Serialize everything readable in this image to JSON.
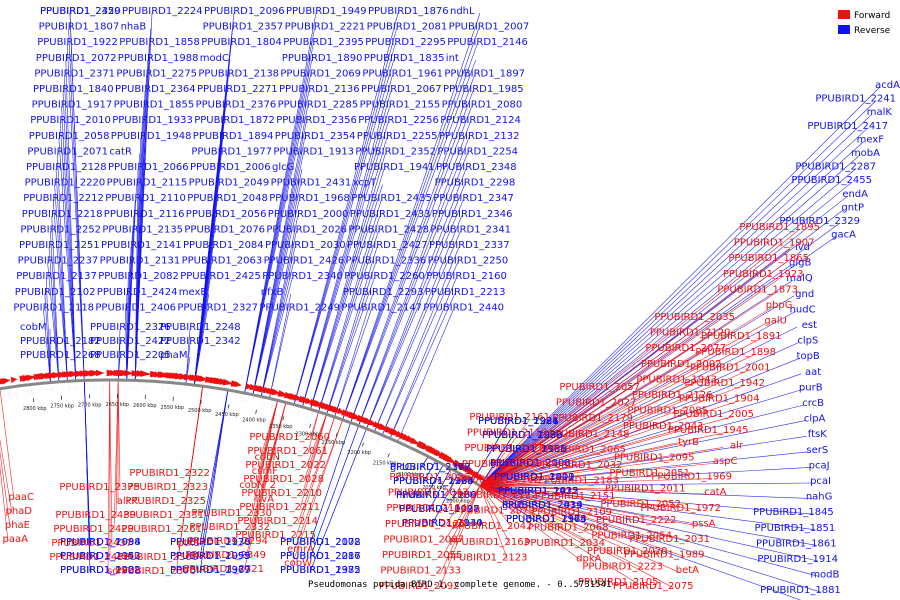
{
  "caption": "Pseudomonas putida BIRD-1, complete genome. - 0..5731541",
  "legend": [
    {
      "label": "Forward",
      "color": "#ee1111"
    },
    {
      "label": "Reverse",
      "color": "#1111ee"
    }
  ],
  "colors": {
    "forward": "#ee1111",
    "reverse": "#1111ee",
    "backbone": "#777777"
  },
  "tick_labels": [
    "2000 kbp",
    "2050 kbp",
    "2100 kbp",
    "2150 kbp",
    "2200 kbp",
    "2250 kbp",
    "2300 kbp",
    "2350 kbp",
    "2400 kbp",
    "2450 kbp",
    "2500 kbp",
    "2550 kbp",
    "2600 kbp",
    "2650 kbp",
    "2700 kbp",
    "2750 kbp",
    "2800 kbp"
  ],
  "reverse_labels": [
    "PPUBIRD1_2359",
    "PPUBIRD1_2224",
    "PPUBIRD1_2096",
    "PPUBIRD1_1949",
    "PPUBIRD1_1876",
    "ndhL",
    "PPUBIRD1_1807",
    "nhaB",
    "PPUBIRD1_2357",
    "PPUBIRD1_2221",
    "PPUBIRD1_2081",
    "PPUBIRD1_2007",
    "PPUBIRD1_1922",
    "PPUBIRD1_1858",
    "PPUBIRD1_1804",
    "PPUBIRD1_2395",
    "PPUBIRD1_2295",
    "PPUBIRD1_2146",
    "PPUBIRD1_2072",
    "PPUBIRD1_1988",
    "modC",
    "PPUBIRD1_1890",
    "PPUBIRD1_1835",
    "int",
    "PPUBIRD1_2371",
    "PPUBIRD1_2275",
    "PPUBIRD1_2138",
    "PPUBIRD1_2069",
    "PPUBIRD1_1961",
    "PPUBIRD1_1897",
    "PPUBIRD1_1840",
    "PPUBIRD1_2364",
    "PPUBIRD1_2271",
    "PPUBIRD1_2136",
    "PPUBIRD1_2067",
    "PPUBIRD1_1985",
    "PPUBIRD1_1917",
    "PPUBIRD1_1855",
    "PPUBIRD1_2376",
    "PPUBIRD1_2285",
    "PPUBIRD1_2155",
    "PPUBIRD1_2080",
    "PPUBIRD1_2010",
    "PPUBIRD1_1933",
    "PPUBIRD1_1872",
    "PPUBIRD1_2356",
    "PPUBIRD1_2256",
    "PPUBIRD1_2124",
    "PPUBIRD1_2058",
    "PPUBIRD1_1948",
    "PPUBIRD1_1894",
    "PPUBIRD1_2354",
    "PPUBIRD1_2255",
    "PPUBIRD1_2132",
    "PPUBIRD1_2071",
    "catR",
    "PPUBIRD1_1977",
    "PPUBIRD1_1913",
    "PPUBIRD1_2352",
    "PPUBIRD1_2254",
    "PPUBIRD1_2128",
    "PPUBIRD1_2066",
    "PPUBIRD1_2006",
    "glcG",
    "PPUBIRD1_1941",
    "PPUBIRD1_2348",
    "PPUBIRD1_2220",
    "PPUBIRD1_2115",
    "PPUBIRD1_2049",
    "PPUBIRD1_2431",
    "xcpT",
    "PPUBIRD1_2298",
    "PPUBIRD1_2212",
    "PPUBIRD1_2110",
    "PPUBIRD1_2048",
    "PPUBIRD1_1968",
    "PPUBIRD1_2435",
    "PPUBIRD1_2347",
    "PPUBIRD1_2218",
    "PPUBIRD1_2116",
    "PPUBIRD1_2056",
    "PPUBIRD1_2000",
    "PPUBIRD1_2433",
    "PPUBIRD1_2346",
    "PPUBIRD1_2252",
    "PPUBIRD1_2135",
    "PPUBIRD1_2076",
    "PPUBIRD1_2026",
    "PPUBIRD1_2428",
    "PPUBIRD1_2341",
    "PPUBIRD1_2251",
    "PPUBIRD1_2141",
    "PPUBIRD1_2084",
    "PPUBIRD1_2030",
    "PPUBIRD1_2427",
    "PPUBIRD1_2337",
    "PPUBIRD1_2237",
    "PPUBIRD1_2131",
    "PPUBIRD1_2063",
    "PPUBIRD1_2426",
    "PPUBIRD1_2336",
    "PPUBIRD1_2250",
    "PPUBIRD1_2137",
    "PPUBIRD1_2082",
    "PPUBIRD1_2425",
    "PPUBIRD1_2340",
    "PPUBIRD1_2260",
    "PPUBIRD1_2160",
    "PPUBIRD1_2102",
    "PPUBIRD1_2424",
    "mexE",
    "nfxB",
    "PPUBIRD1_2293",
    "PPUBIRD1_2213",
    "PPUBIRD1_2118",
    "PPUBIRD1_2406",
    "PPUBIRD1_2327",
    "PPUBIRD1_2249",
    "PPUBIRD1_2147",
    "PPUBIRD1_2440",
    "cobM",
    "PPUBIRD1_2326",
    "PPUBIRD1_2248",
    "PPUBIRD1_2182",
    "PPUBIRD1_2422",
    "PPUBIRD1_2342",
    "PPUBIRD1_2268",
    "PPUBIRD1_2205",
    "phaM",
    "PPUBIRD1_2420",
    "acdA",
    "PPUBIRD1_2241",
    "malK",
    "PPUBIRD1_2417",
    "mexF",
    "mobA",
    "PPUBIRD1_2287",
    "PPUBIRD1_2455",
    "endA",
    "gntP",
    "PPUBIRD1_2329",
    "gacA",
    "ivd",
    "glgB",
    "malQ",
    "gnd",
    "nudC",
    "est",
    "clpS",
    "topB",
    "aat",
    "purB",
    "crcB",
    "clpA",
    "ftsK",
    "serS",
    "pcaJ",
    "pcaI",
    "nahG",
    "PPUBIRD1_1845",
    "PPUBIRD1_1851",
    "PPUBIRD1_1861",
    "PPUBIRD1_1914",
    "modB",
    "PPUBIRD1_1881",
    "modA",
    "PPUBIRD1_1924",
    "PPUBIRD1_1929",
    "PPUBIRD1_1935",
    "glcF",
    "PPUBIRD1_1912",
    "PPUBIRD1_1925",
    "glcE",
    "PPUBIRD1_1964",
    "glcC",
    "PPUBIRD1_1926",
    "mrdA",
    "PPUBIRD1_1928",
    "PPUBIRD1_1934",
    "PPUBIRD1_1984",
    "PPUBIRD1_1938",
    "PPUBIRD1_2008",
    "PPUBIRD1_1953",
    "PPUBIRD1_1955",
    "PPUBIRD1_2017",
    "PPUBIRD1_1962",
    "PPUBIRD1_1967",
    "PPUBIRD1_1975",
    "PPUBIRD1_1986",
    "PPUBIRD1_1990",
    "PPUBIRD1_1998",
    "PPUBIRD1_2003",
    "PPUBIRD1_2009",
    "PPUBIRD1_2012",
    "PPUBIRD1_2019",
    "PPUBIRD1_2165",
    "PPUBIRD1_2168",
    "PPUBIRD1_2134",
    "PPUBIRD1_2139",
    "PPUBIRD1_2097",
    "PPUBIRD1_2140",
    "PPUBIRD1_2098",
    "PPUBIRD1_2170",
    "PPUBIRD1_2172",
    "PPUBIRD1_2142",
    "PPUBIRD1_2099",
    "PPUBIRD1_2286",
    "PPUBIRD1_2228",
    "PPUBIRD1_2379",
    "PPUBIRD1_2382",
    "PPUBIRD1_2231",
    "PPUBIRD1_2232",
    "PPUBIRD1_2166",
    "PPUBIRD1_2100",
    "PPUBIRD1_2101",
    "PPUBIRD1_2432",
    "PPUBIRD1_2434",
    "PPUBIRD1_2373",
    "PPUBIRD1_2377",
    "PPUBIRD1_2265",
    "PPUBIRD1_2266"
  ],
  "forward_labels": [
    "PPUBIRD1_1895",
    "PPUBIRD1_1907",
    "PPUBIRD1_1865",
    "PPUBIRD1_1923",
    "PPUBIRD1_1873",
    "pbpG",
    "galU",
    "PPUBIRD1_1891",
    "PPUBIRD1_1898",
    "PPUBIRD1_2001",
    "PPUBIRD1_1942",
    "PPUBIRD1_1904",
    "PPUBIRD1_2005",
    "PPUBIRD1_1945",
    "alr",
    "aspC",
    "PPUBIRD1_1969",
    "catA",
    "PPUBIRD1_1972",
    "pssA",
    "PPUBIRD1_2031",
    "PPUBIRD1_1989",
    "betA",
    "PPUBIRD1_2075",
    "PPUBIRD1_2035",
    "PPUBIRD1_2120",
    "PPUBIRD1_2077",
    "PPUBIRD1_2002",
    "PPUBIRD1_1943",
    "PPUBIRD1_2126",
    "PPUBIRD1_2085",
    "PPUBIRD1_2043",
    "tyrB",
    "PPUBIRD1_2095",
    "PPUBIRD1_2051",
    "PPUBIRD1_2011",
    "PPUBIRD1_2052",
    "PPUBIRD1_2222",
    "PPUBIRD1_2054",
    "PPUBIRD1_2020",
    "PPUBIRD1_2223",
    "PPUBIRD1_2105",
    "PPUBIRD1_2057",
    "PPUBIRD1_2027",
    "PPUBIRD1_2179",
    "PPUBIRD1_2148",
    "PPUBIRD1_2065",
    "PPUBIRD1_2032",
    "PPUBIRD1_2183",
    "PPUBIRD1_2151",
    "PPUBIRD1_2109",
    "PPUBIRD1_2068",
    "PPUBIRD1_2034",
    "dpkA",
    "PPUBIRD1_2161",
    "PPUBIRD1_2119",
    "PPUBIRD1_2078",
    "PPUBIRD1_2039",
    "PPUBIRD1_2162",
    "PPUBIRD1_2122",
    "PPUBIRD1_2079",
    "PPUBIRD1_2042",
    "PPUBIRD1_2163",
    "PPUBIRD1_2123",
    "PPUBIRD1_2086",
    "PPUBIRD1_2047",
    "PPUBIRD1_2164",
    "PPUBIRD1_2125",
    "PPUBIRD1_2087",
    "PPUBIRD1_2055",
    "PPUBIRD1_2133",
    "PPUBIRD1_2092",
    "PPUBIRD1_2060",
    "PPUBIRD1_2061",
    "PPUBIRD1_2022",
    "PPUBIRD1_2028",
    "PPUBIRD1_2210",
    "PPUBIRD1_2211",
    "PPUBIRD1_2214",
    "PPUBIRD1_2215",
    "emrA",
    "cobW",
    "cobN",
    "csmF",
    "cobN_2",
    "ilvA",
    "PPUBIRD1_2330",
    "PPUBIRD1_2332",
    "PPUBIRD1_2294",
    "PPUBIRD1_2349",
    "PPUBIRD1_2321",
    "PPUBIRD1_2322",
    "PPUBIRD1_2323",
    "PPUBIRD1_2325",
    "PPUBIRD1_2331",
    "PPUBIRD1_2261",
    "ptxS",
    "PPUBIRD1_2366",
    "PPUBIRD1_2370",
    "PPUBIRD1_2375",
    "alkK",
    "PPUBIRD1_2439",
    "PPUBIRD1_2429",
    "PPUBIRD1_2437",
    "PPUBIRD1_2438",
    "scrY",
    "paaC",
    "phaD",
    "phaE",
    "paaA"
  ]
}
